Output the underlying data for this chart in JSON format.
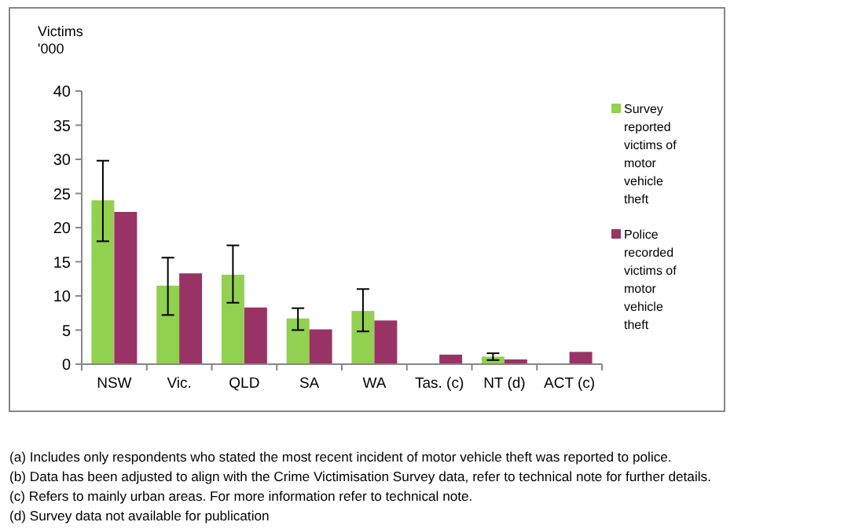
{
  "chart_data": {
    "type": "bar",
    "ylabel": "Victims\n'000",
    "categories": [
      "NSW",
      "Vic.",
      "QLD",
      "SA",
      "WA",
      "Tas. (c)",
      "NT (d)",
      "ACT (c)"
    ],
    "series": [
      {
        "name": "Survey reported victims of motor vehicle theft",
        "color": "#92d050",
        "values": [
          24.0,
          11.5,
          13.1,
          6.7,
          7.8,
          null,
          1.1,
          null
        ],
        "errors": [
          [
            18.0,
            29.8
          ],
          [
            7.2,
            15.6
          ],
          [
            9.0,
            17.4
          ],
          [
            5.0,
            8.2
          ],
          [
            4.8,
            11.0
          ],
          null,
          [
            0.6,
            1.6
          ],
          null
        ]
      },
      {
        "name": "Police recorded victims of motor vehicle theft",
        "color": "#993366",
        "values": [
          22.3,
          13.3,
          8.3,
          5.1,
          6.4,
          1.4,
          0.7,
          1.8
        ]
      }
    ],
    "ylim": [
      0,
      40
    ],
    "yticks": [
      0,
      5,
      10,
      15,
      20,
      25,
      30,
      35,
      40
    ],
    "grid": false,
    "legend": "right",
    "annotations": [
      "(a) Includes only respondents who stated the most recent incident of motor vehicle theft was reported to police.",
      "(b) Data has been adjusted to align with the Crime Victimisation Survey data, refer to technical note for further details.",
      "(c) Refers to mainly urban areas. For more information refer to technical note.",
      "(d) Survey data not available for publication"
    ]
  }
}
